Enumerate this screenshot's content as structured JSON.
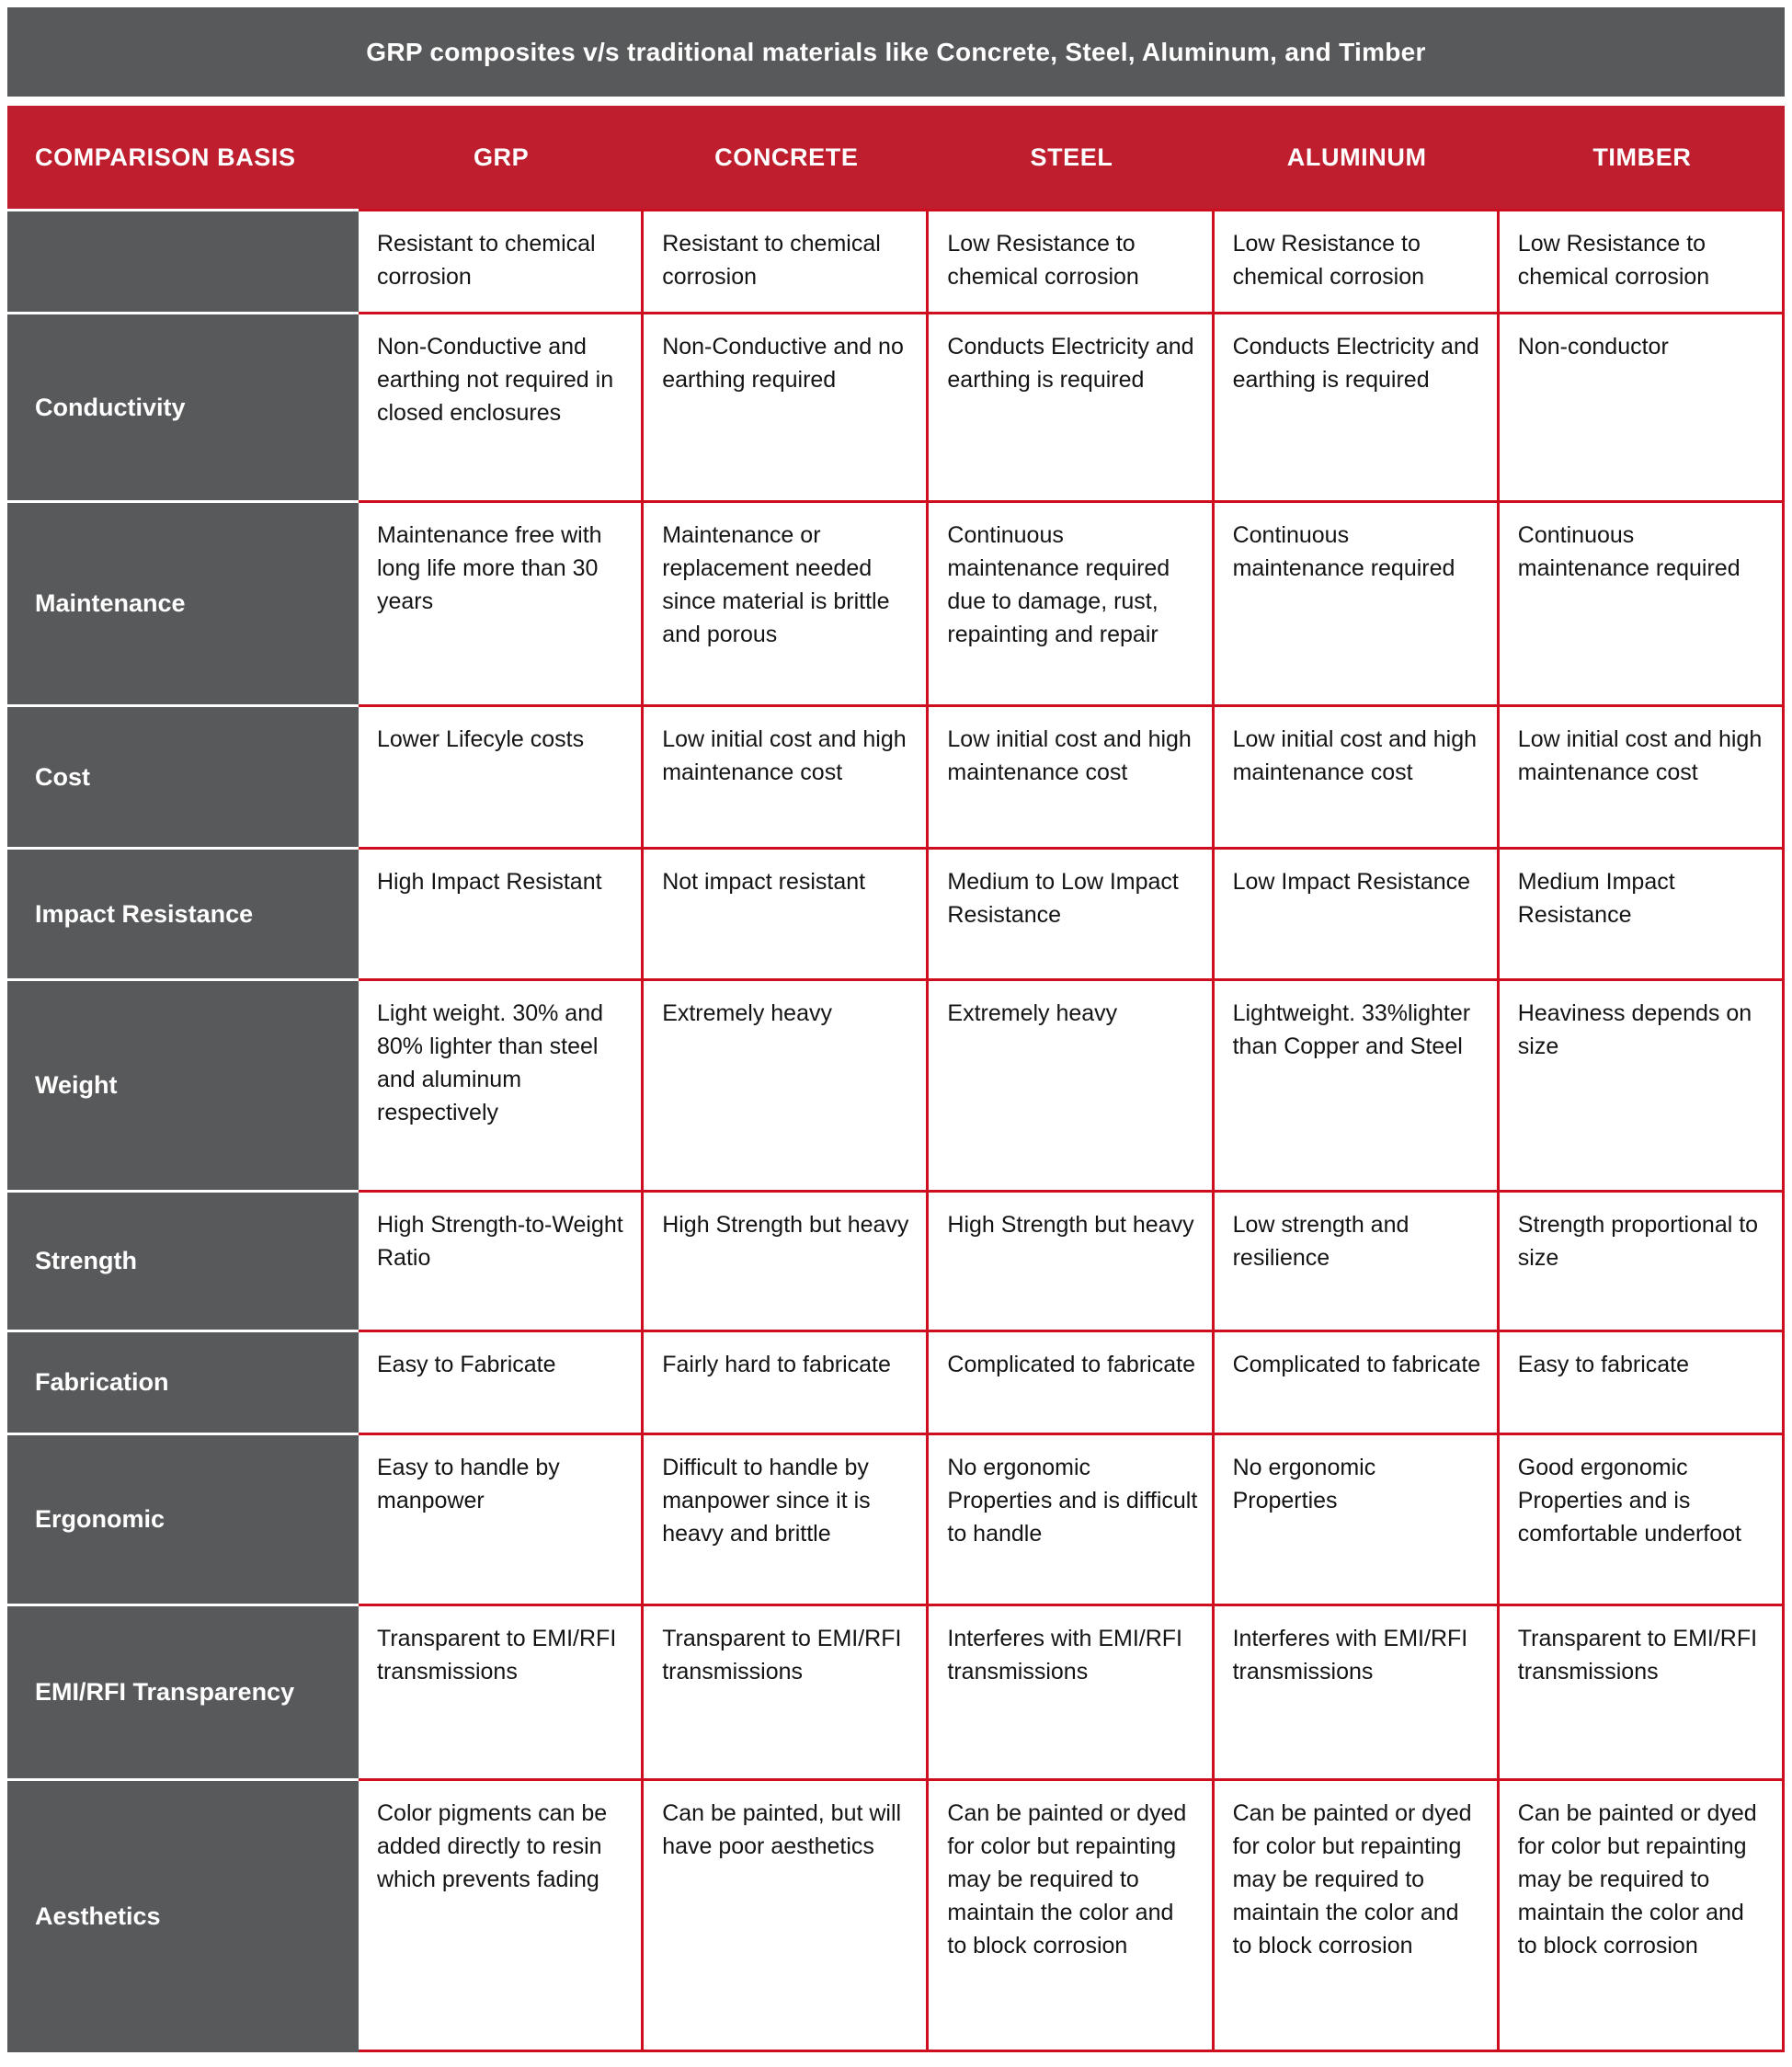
{
  "title": "GRP composites v/s traditional materials like Concrete, Steel, Aluminum, and Timber",
  "columns": [
    "COMPARISON BASIS",
    "GRP",
    "CONCRETE",
    "STEEL",
    "ALUMINUM",
    "TIMBER"
  ],
  "colors": {
    "header_red": "#BE1E2D",
    "border_red": "#CE0E1F",
    "gray": "#58595B"
  },
  "rows": [
    {
      "label": "",
      "cells": [
        "Resistant to chemical corrosion",
        "Resistant to chemical corrosion",
        "Low Resistance to chemical corrosion",
        "Low Resistance to chemical corrosion",
        "Low Resistance to chemical corrosion"
      ]
    },
    {
      "label": "Conductivity",
      "cells": [
        "Non-Conductive and earthing not required in closed enclosures",
        "Non-Conductive and no earthing required",
        "Conducts Electricity and earthing is required",
        "Conducts Electricity and earthing is required",
        "Non-conductor"
      ]
    },
    {
      "label": "Maintenance",
      "cells": [
        "Maintenance free with long life more than 30 years",
        "Maintenance or replacement needed since material is brittle and porous",
        "Continuous maintenance required due to damage, rust, repainting and repair",
        "Continuous maintenance required",
        "Continuous maintenance required"
      ]
    },
    {
      "label": "Cost",
      "cells": [
        "Lower Lifecyle costs",
        "Low initial cost and high maintenance cost",
        "Low initial cost and high maintenance cost",
        "Low initial cost and high maintenance cost",
        "Low initial cost and high maintenance cost"
      ]
    },
    {
      "label": "Impact Resistance",
      "cells": [
        "High Impact Resistant",
        "Not impact resistant",
        "Medium to Low Impact Resistance",
        "Low Impact Resistance",
        "Medium Impact Resistance"
      ]
    },
    {
      "label": "Weight",
      "cells": [
        "Light weight. 30% and 80% lighter than steel and aluminum respectively",
        "Extremely heavy",
        "Extremely heavy",
        "Lightweight. 33%lighter than Copper and Steel",
        "Heaviness depends on size"
      ]
    },
    {
      "label": "Strength",
      "cells": [
        "High Strength-to-Weight Ratio",
        "High Strength but heavy",
        "High Strength but heavy",
        "Low strength and resilience",
        "Strength proportional to size"
      ]
    },
    {
      "label": "Fabrication",
      "cells": [
        "Easy to Fabricate",
        "Fairly hard to fabricate",
        "Complicated to fabricate",
        "Complicated to fabricate",
        "Easy to fabricate"
      ]
    },
    {
      "label": "Ergonomic",
      "cells": [
        "Easy to handle by manpower",
        "Difficult to handle by manpower since it is heavy and brittle",
        "No ergonomic Properties and is difficult to handle",
        "No ergonomic Properties",
        "Good ergonomic Properties and is comfortable underfoot"
      ]
    },
    {
      "label": "EMI/RFI Transparency",
      "cells": [
        "Transparent to EMI/RFI transmissions",
        "Transparent to EMI/RFI transmissions",
        "Interferes with EMI/RFI transmissions",
        "Interferes with EMI/RFI transmissions",
        "Transparent to EMI/RFI transmissions"
      ]
    },
    {
      "label": "Aesthetics",
      "cells": [
        "Color pigments can be added directly to resin which prevents fading",
        "Can be painted, but will have poor aesthetics",
        "Can be painted or dyed for color but repainting may be required to maintain the color and to block corrosion",
        "Can be painted or dyed for color but repainting may be required to maintain the color and to block corrosion",
        "Can be painted or dyed for color but repainting may be required to maintain the color and to block corrosion"
      ]
    }
  ]
}
